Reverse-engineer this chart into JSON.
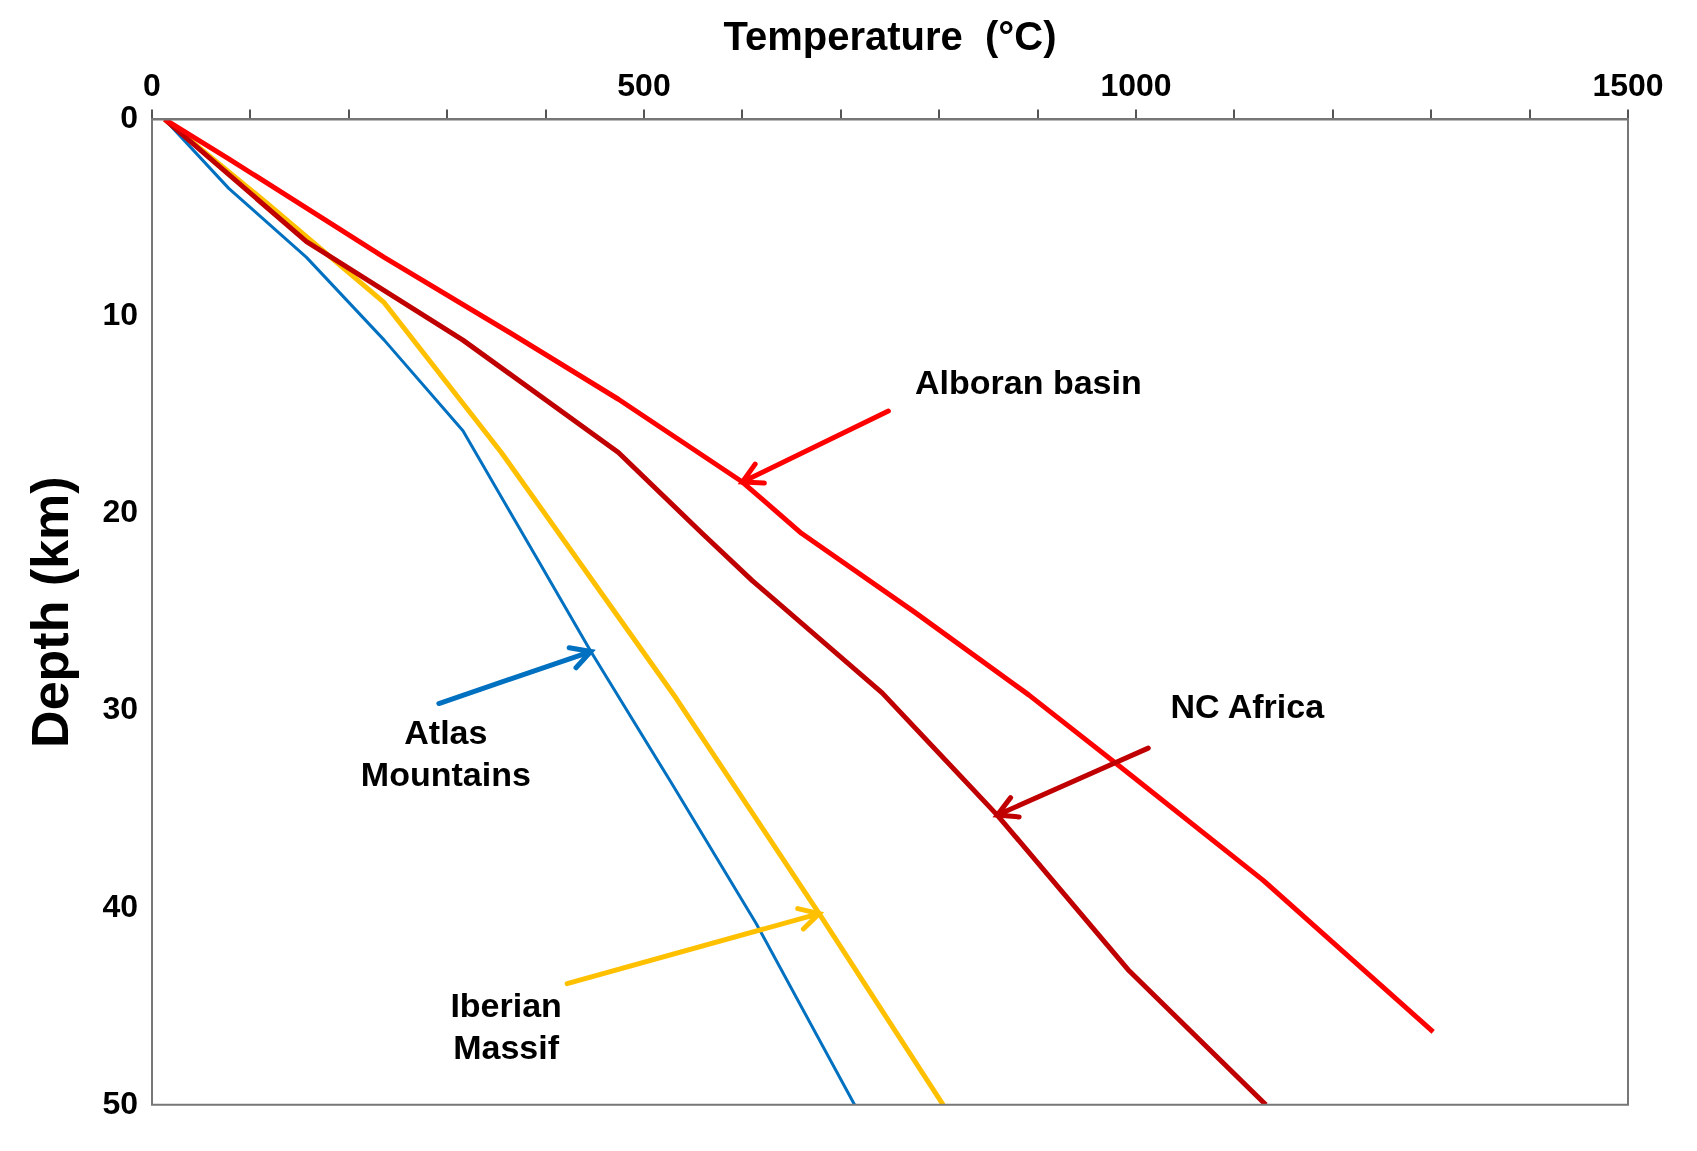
{
  "chart_data": {
    "type": "line",
    "xlabel": "Temperature  (°C)",
    "ylabel": "Depth (km)",
    "xlim": [
      0,
      1500
    ],
    "xticks": [
      0,
      {
        "value": 100,
        "label": null
      },
      {
        "value": 200,
        "label": null
      },
      {
        "value": 300,
        "label": null
      },
      {
        "value": 400,
        "label": null
      },
      500,
      {
        "value": 600,
        "label": null
      },
      {
        "value": 700,
        "label": null
      },
      {
        "value": 800,
        "label": null
      },
      {
        "value": 900,
        "label": null
      },
      1000,
      {
        "value": 1100,
        "label": null
      },
      {
        "value": 1200,
        "label": null
      },
      {
        "value": 1300,
        "label": null
      },
      {
        "value": 1400,
        "label": null
      },
      1500
    ],
    "ylim": [
      50,
      0
    ],
    "yticks": [
      0,
      10,
      20,
      30,
      40,
      50
    ],
    "grid": false,
    "legend": false,
    "marker": "none",
    "line_style": "solid",
    "series": [
      {
        "color": "#ff0000",
        "x": [
          13,
          78,
          236,
          363,
          474,
          600,
          660,
          775,
          891,
          993,
          1129,
          1302
        ],
        "values": [
          0,
          2,
          7,
          10.8,
          14.2,
          18.4,
          21,
          25,
          29.2,
          33.2,
          38.6,
          46.3
        ]
      },
      {
        "color": "#c00000",
        "x": [
          13,
          157,
          316,
          474,
          559,
          610,
          742,
          859,
          993,
          1132
        ],
        "values": [
          0,
          6.2,
          11.2,
          16.9,
          21,
          23.4,
          29.1,
          35.3,
          43.2,
          50
        ]
      },
      {
        "color": "#0070c0",
        "x": [
          13,
          78,
          157,
          236,
          316,
          395,
          446,
          527,
          614,
          714
        ],
        "values": [
          0,
          3.5,
          7,
          11.2,
          15.8,
          22.6,
          27,
          33.6,
          40.8,
          50
        ]
      },
      {
        "color": "#ffc000",
        "x": [
          13,
          118,
          236,
          355,
          442,
          533,
          678,
          804
        ],
        "values": [
          0,
          4.3,
          9.3,
          16.9,
          23,
          29.4,
          40.3,
          50
        ]
      }
    ],
    "annotations": [
      {
        "text": "Alboran basin",
        "x": 600,
        "y": 18.4
      },
      {
        "text": "NC Africa",
        "x": 859,
        "y": 35.3
      },
      {
        "text": "Atlas\nMountains",
        "x": 446,
        "y": 27
      },
      {
        "text": "Iberian\nMassif",
        "x": 678,
        "y": 40.3
      }
    ]
  }
}
